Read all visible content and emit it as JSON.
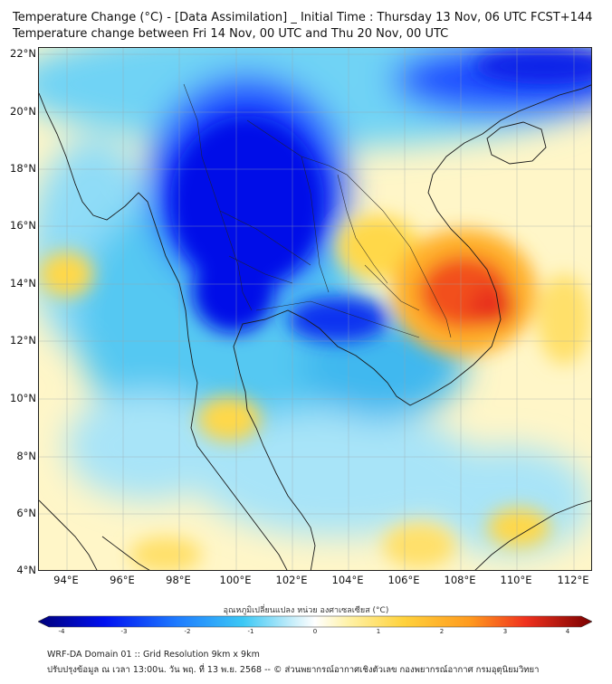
{
  "title": {
    "line1": "Temperature Change (°C) - [Data Assimilation] _ Initial Time : Thursday 13 Nov, 06 UTC FCST+144",
    "line2": "Temperature change between Fri 14 Nov, 00 UTC and Thu 20 Nov, 00 UTC"
  },
  "axes": {
    "lat_labels": [
      "22°N",
      "20°N",
      "18°N",
      "16°N",
      "14°N",
      "12°N",
      "10°N",
      "8°N",
      "6°N",
      "4°N"
    ],
    "lon_labels": [
      "94°E",
      "96°E",
      "98°E",
      "100°E",
      "102°E",
      "104°E",
      "106°E",
      "108°E",
      "110°E",
      "112°E"
    ],
    "lat_range": [
      4,
      22.2
    ],
    "lon_range": [
      93,
      112.7
    ]
  },
  "colorbar": {
    "title": "อุณหภูมิเปลี่ยนแปลง หน่วย องศาเซลเซียส (°C)",
    "ticks": [
      "-4",
      "-3",
      "-2",
      "-1",
      "0",
      "1",
      "2",
      "3",
      "4"
    ],
    "range": [
      -4,
      4
    ],
    "colors": {
      "cold_extreme": "#00007a",
      "cold_strong": "#0010f0",
      "cold_medium": "#1e7bff",
      "cold_light": "#3cc8f5",
      "cool_pale": "#c8eefa",
      "neutral": "#ffffff",
      "warm_pale": "#fff2a8",
      "warm_light": "#ffd23c",
      "warm_medium": "#ff9a1e",
      "hot_strong": "#f0321e",
      "hot_extreme": "#7a0000"
    }
  },
  "footer": {
    "line1": "WRF-DA Domain 01 :: Grid Resolution 9km x 9km",
    "line2": "ปรับปรุงข้อมูล ณ เวลา 13:00น. วัน พฤ. ที่ 13 พ.ย. 2568 -- © ส่วนพยากรณ์อากาศเชิงตัวเลข กองพยากรณ์อากาศ กรมอุตุนิยมวิทยา"
  }
}
